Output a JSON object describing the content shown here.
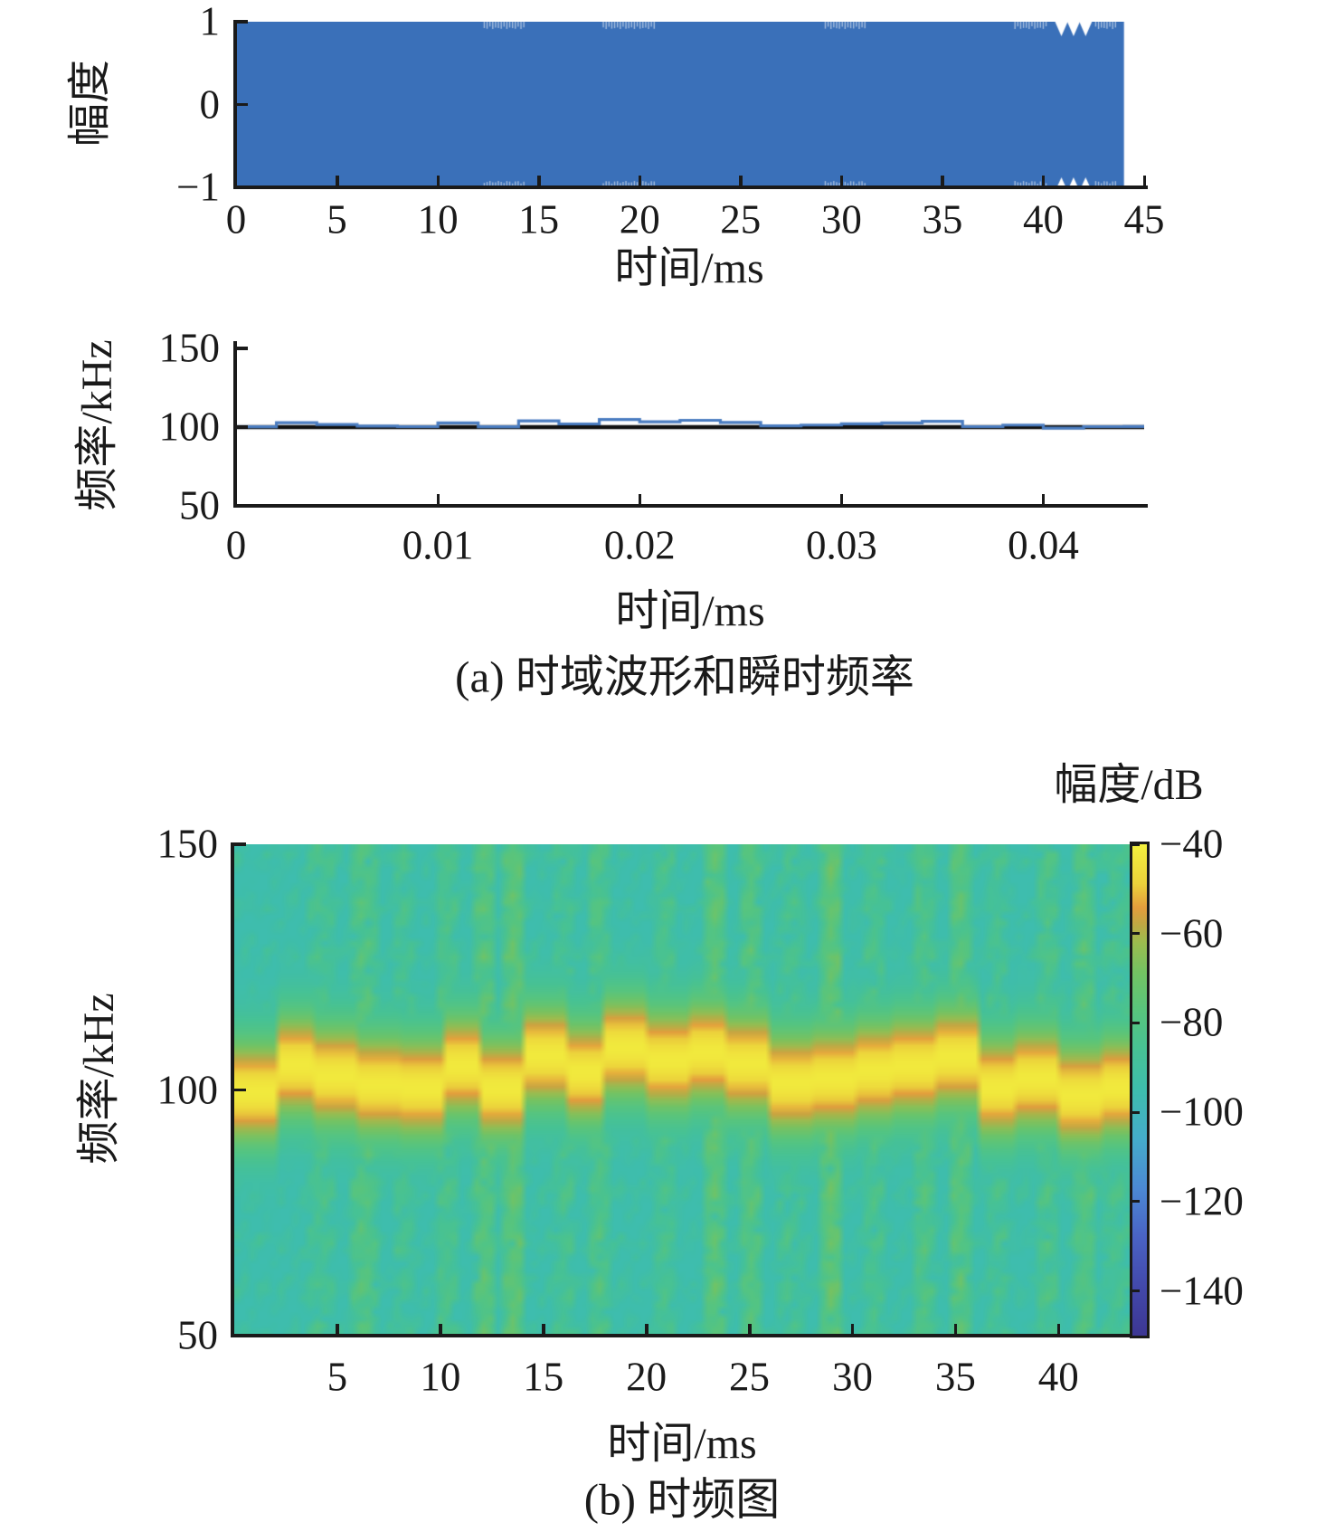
{
  "colors": {
    "background": "#ffffff",
    "axis": "#1a1a1a",
    "text": "#1a1a1a",
    "waveform_fill": "#3a70b9",
    "hop_line": "#4a7cc0",
    "reference_line": "#111111"
  },
  "panel_a": {
    "ylabel": "幅度",
    "xlabel": "时间/ms",
    "ytick_labels": [
      "1",
      "0",
      "−1"
    ],
    "xtick_labels": [
      "0",
      "5",
      "10",
      "15",
      "20",
      "25",
      "30",
      "35",
      "40",
      "45"
    ],
    "caption": "(a) 时域波形和瞬时频率"
  },
  "panel_a2": {
    "ylabel": "频率/kHz",
    "xlabel": "时间/ms",
    "ytick_labels": [
      "150",
      "100",
      "50"
    ],
    "xtick_labels": [
      "0",
      "0.01",
      "0.02",
      "0.03",
      "0.04"
    ]
  },
  "panel_b": {
    "ylabel": "频率/kHz",
    "xlabel": "时间/ms",
    "ytick_labels": [
      "150",
      "100",
      "50"
    ],
    "xtick_labels": [
      "5",
      "10",
      "15",
      "20",
      "25",
      "30",
      "35",
      "40"
    ],
    "caption": "(b) 时频图",
    "colorbar_title": "幅度/dB",
    "colorbar_tick_labels": [
      "−40",
      "−60",
      "−80",
      "−100",
      "−120",
      "−140"
    ]
  },
  "chart_data": [
    {
      "id": "time-domain-waveform",
      "type": "area",
      "xlabel": "时间/ms",
      "ylabel": "幅度",
      "xlim": [
        0,
        45
      ],
      "ylim": [
        -1,
        1
      ],
      "xticks": [
        0,
        5,
        10,
        15,
        20,
        25,
        30,
        35,
        40,
        45
      ],
      "yticks": [
        1,
        0,
        -1
      ],
      "signal_start_ms": 0,
      "signal_end_ms": 44,
      "amplitude": 1,
      "envelope_notches_ms": [
        40.9,
        41.5,
        42.1
      ],
      "speckle_regions_ms": [
        [
          12.3,
          14.4
        ],
        [
          18.2,
          20.8
        ],
        [
          29.2,
          31.3
        ],
        [
          38.6,
          40.2
        ],
        [
          42.6,
          43.6
        ]
      ],
      "grid": false
    },
    {
      "id": "instantaneous-frequency",
      "type": "line",
      "xlabel": "时间/ms",
      "ylabel": "频率/kHz",
      "xlim": [
        0,
        0.045
      ],
      "ylim": [
        50,
        150
      ],
      "xticks": [
        0,
        0.01,
        0.02,
        0.03,
        0.04
      ],
      "yticks": [
        150,
        100,
        50
      ],
      "reference_line_khz": 100,
      "hop_duration_s": 0.002,
      "hop_frequencies_khz": [
        100.2,
        102.8,
        101.6,
        100.6,
        100.3,
        102.7,
        100.2,
        103.9,
        102.0,
        104.8,
        103.4,
        104.3,
        103.0,
        100.8,
        101.3,
        102.1,
        102.7,
        103.7,
        100.3,
        101.3,
        99.4,
        100.3,
        100.4
      ],
      "grid": false
    },
    {
      "id": "spectrogram",
      "type": "heatmap",
      "xlabel": "时间/ms",
      "ylabel": "频率/kHz",
      "colorbar_title": "幅度/dB",
      "xlim": [
        0,
        43.5
      ],
      "ylim": [
        50,
        150
      ],
      "xticks": [
        5,
        10,
        15,
        20,
        25,
        30,
        35,
        40
      ],
      "yticks": [
        150,
        100,
        50
      ],
      "colorbar_ticks": [
        -40,
        -60,
        -80,
        -100,
        -120,
        -140
      ],
      "clim": [
        -150,
        -40
      ],
      "grid_cols": 124,
      "grid_rows": 72,
      "hop_duration_ms": 2,
      "band_center_khz": [
        99.6,
        105.0,
        102.9,
        101.1,
        100.5,
        104.9,
        100.4,
        107.0,
        103.6,
        108.6,
        106.1,
        107.7,
        105.4,
        101.4,
        102.3,
        103.8,
        104.9,
        106.7,
        100.5,
        102.3,
        98.9,
        100.5
      ],
      "band_peak_db": -42,
      "band_sigma_khz": 11,
      "background_db": -94,
      "noise_db": 7,
      "seed": 7,
      "streaks_ms_db": [
        [
          4.2,
          9
        ],
        [
          6.3,
          15
        ],
        [
          8.1,
          8
        ],
        [
          10.2,
          11
        ],
        [
          12.2,
          17
        ],
        [
          13.6,
          20
        ],
        [
          16.1,
          8
        ],
        [
          17.6,
          13
        ],
        [
          20.9,
          9
        ],
        [
          23.3,
          19
        ],
        [
          25.1,
          15
        ],
        [
          27.0,
          8
        ],
        [
          29.0,
          21
        ],
        [
          31.1,
          9
        ],
        [
          33.4,
          13
        ],
        [
          35.2,
          17
        ],
        [
          37.1,
          8
        ],
        [
          39.4,
          11
        ],
        [
          41.3,
          15
        ],
        [
          42.8,
          9
        ]
      ],
      "colormap_stops": [
        [
          0.0,
          "#3d3794"
        ],
        [
          0.1,
          "#4349ab"
        ],
        [
          0.2,
          "#4a63c4"
        ],
        [
          0.3,
          "#4c89d4"
        ],
        [
          0.4,
          "#45accb"
        ],
        [
          0.5,
          "#3ebdae"
        ],
        [
          0.58,
          "#47c295"
        ],
        [
          0.66,
          "#58c57e"
        ],
        [
          0.74,
          "#74c363"
        ],
        [
          0.8,
          "#9cbc4f"
        ],
        [
          0.84,
          "#c3a743"
        ],
        [
          0.87,
          "#e39d3d"
        ],
        [
          0.92,
          "#ecd23b"
        ],
        [
          1.0,
          "#f3f13e"
        ]
      ]
    }
  ]
}
